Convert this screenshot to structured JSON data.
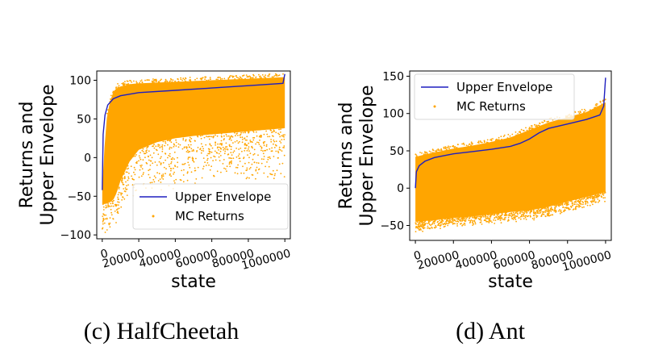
{
  "colors": {
    "scatter": "#FFA500",
    "envelope": "#1f1fbf",
    "axis": "#000000"
  },
  "chart_data": [
    {
      "type": "scatter",
      "caption": "(c) HalfCheetah",
      "xlabel": "state",
      "ylabel_line1": "Returns and",
      "ylabel_line2": "Upper Envelope",
      "xlim": [
        -30000,
        1030000
      ],
      "ylim": [
        -105,
        112
      ],
      "xticks": [
        0,
        200000,
        400000,
        600000,
        800000,
        1000000
      ],
      "xtick_labels": [
        "0",
        "200000",
        "400000",
        "600000",
        "800000",
        "1000000"
      ],
      "yticks": [
        -100,
        -50,
        0,
        50,
        100
      ],
      "ytick_labels": [
        "−100",
        "−50",
        "0",
        "50",
        "100"
      ],
      "legend": {
        "placement": "lower-right",
        "entries": [
          "Upper Envelope",
          "MC Returns"
        ]
      },
      "series": [
        {
          "name": "Upper Envelope",
          "kind": "line",
          "x": [
            0,
            5000,
            15000,
            30000,
            60000,
            100000,
            200000,
            400000,
            600000,
            800000,
            990000,
            1000000
          ],
          "y": [
            -42,
            30,
            55,
            68,
            76,
            80,
            84,
            87,
            90,
            93,
            96,
            108
          ]
        },
        {
          "name": "MC Returns",
          "kind": "scatter-band",
          "x": [
            0,
            20000,
            40000,
            60000,
            80000,
            100000,
            150000,
            200000,
            300000,
            400000,
            500000,
            600000,
            700000,
            800000,
            900000,
            1000000
          ],
          "y_upper": [
            -40,
            45,
            70,
            85,
            90,
            92,
            95,
            96,
            97,
            98,
            99,
            100,
            101,
            102,
            103,
            104
          ],
          "y_dense_lower": [
            -60,
            -60,
            -58,
            -55,
            -45,
            -30,
            -5,
            10,
            20,
            25,
            28,
            30,
            32,
            34,
            36,
            38
          ],
          "y_sparse_lower": [
            -100,
            -100,
            -98,
            -95,
            -85,
            -70,
            -60,
            -50,
            -45,
            -40,
            -35,
            -30,
            -30,
            -30,
            -30,
            -30
          ]
        }
      ]
    },
    {
      "type": "scatter",
      "caption": "(d) Ant",
      "xlabel": "state",
      "ylabel_line1": "Returns and",
      "ylabel_line2": "Upper Envelope",
      "xlim": [
        -30000,
        1030000
      ],
      "ylim": [
        -70,
        157
      ],
      "xticks": [
        0,
        200000,
        400000,
        600000,
        800000,
        1000000
      ],
      "xtick_labels": [
        "0",
        "200000",
        "400000",
        "600000",
        "800000",
        "1000000"
      ],
      "yticks": [
        -50,
        0,
        50,
        100,
        150
      ],
      "ytick_labels": [
        "−50",
        "0",
        "50",
        "100",
        "150"
      ],
      "legend": {
        "placement": "upper-left",
        "entries": [
          "Upper Envelope",
          "MC Returns"
        ]
      },
      "series": [
        {
          "name": "Upper Envelope",
          "kind": "line",
          "x": [
            0,
            5000,
            20000,
            50000,
            100000,
            200000,
            300000,
            400000,
            500000,
            550000,
            600000,
            650000,
            700000,
            800000,
            900000,
            970000,
            990000,
            1000000
          ],
          "y": [
            0,
            22,
            30,
            36,
            41,
            46,
            49,
            52,
            56,
            60,
            66,
            74,
            80,
            86,
            92,
            98,
            110,
            148
          ],
          "y_start": 0
        },
        {
          "name": "MC Returns",
          "kind": "scatter-band",
          "x": [
            0,
            50000,
            100000,
            200000,
            300000,
            400000,
            500000,
            600000,
            700000,
            800000,
            900000,
            1000000
          ],
          "y_upper": [
            42,
            45,
            48,
            53,
            57,
            62,
            68,
            78,
            88,
            95,
            102,
            115
          ],
          "y_dense_lower": [
            -45,
            -44,
            -43,
            -40,
            -38,
            -35,
            -32,
            -30,
            -25,
            -18,
            -12,
            -5
          ],
          "y_sparse_lower": [
            -60,
            -58,
            -55,
            -52,
            -50,
            -48,
            -46,
            -44,
            -40,
            -32,
            -25,
            -18
          ]
        }
      ]
    }
  ]
}
